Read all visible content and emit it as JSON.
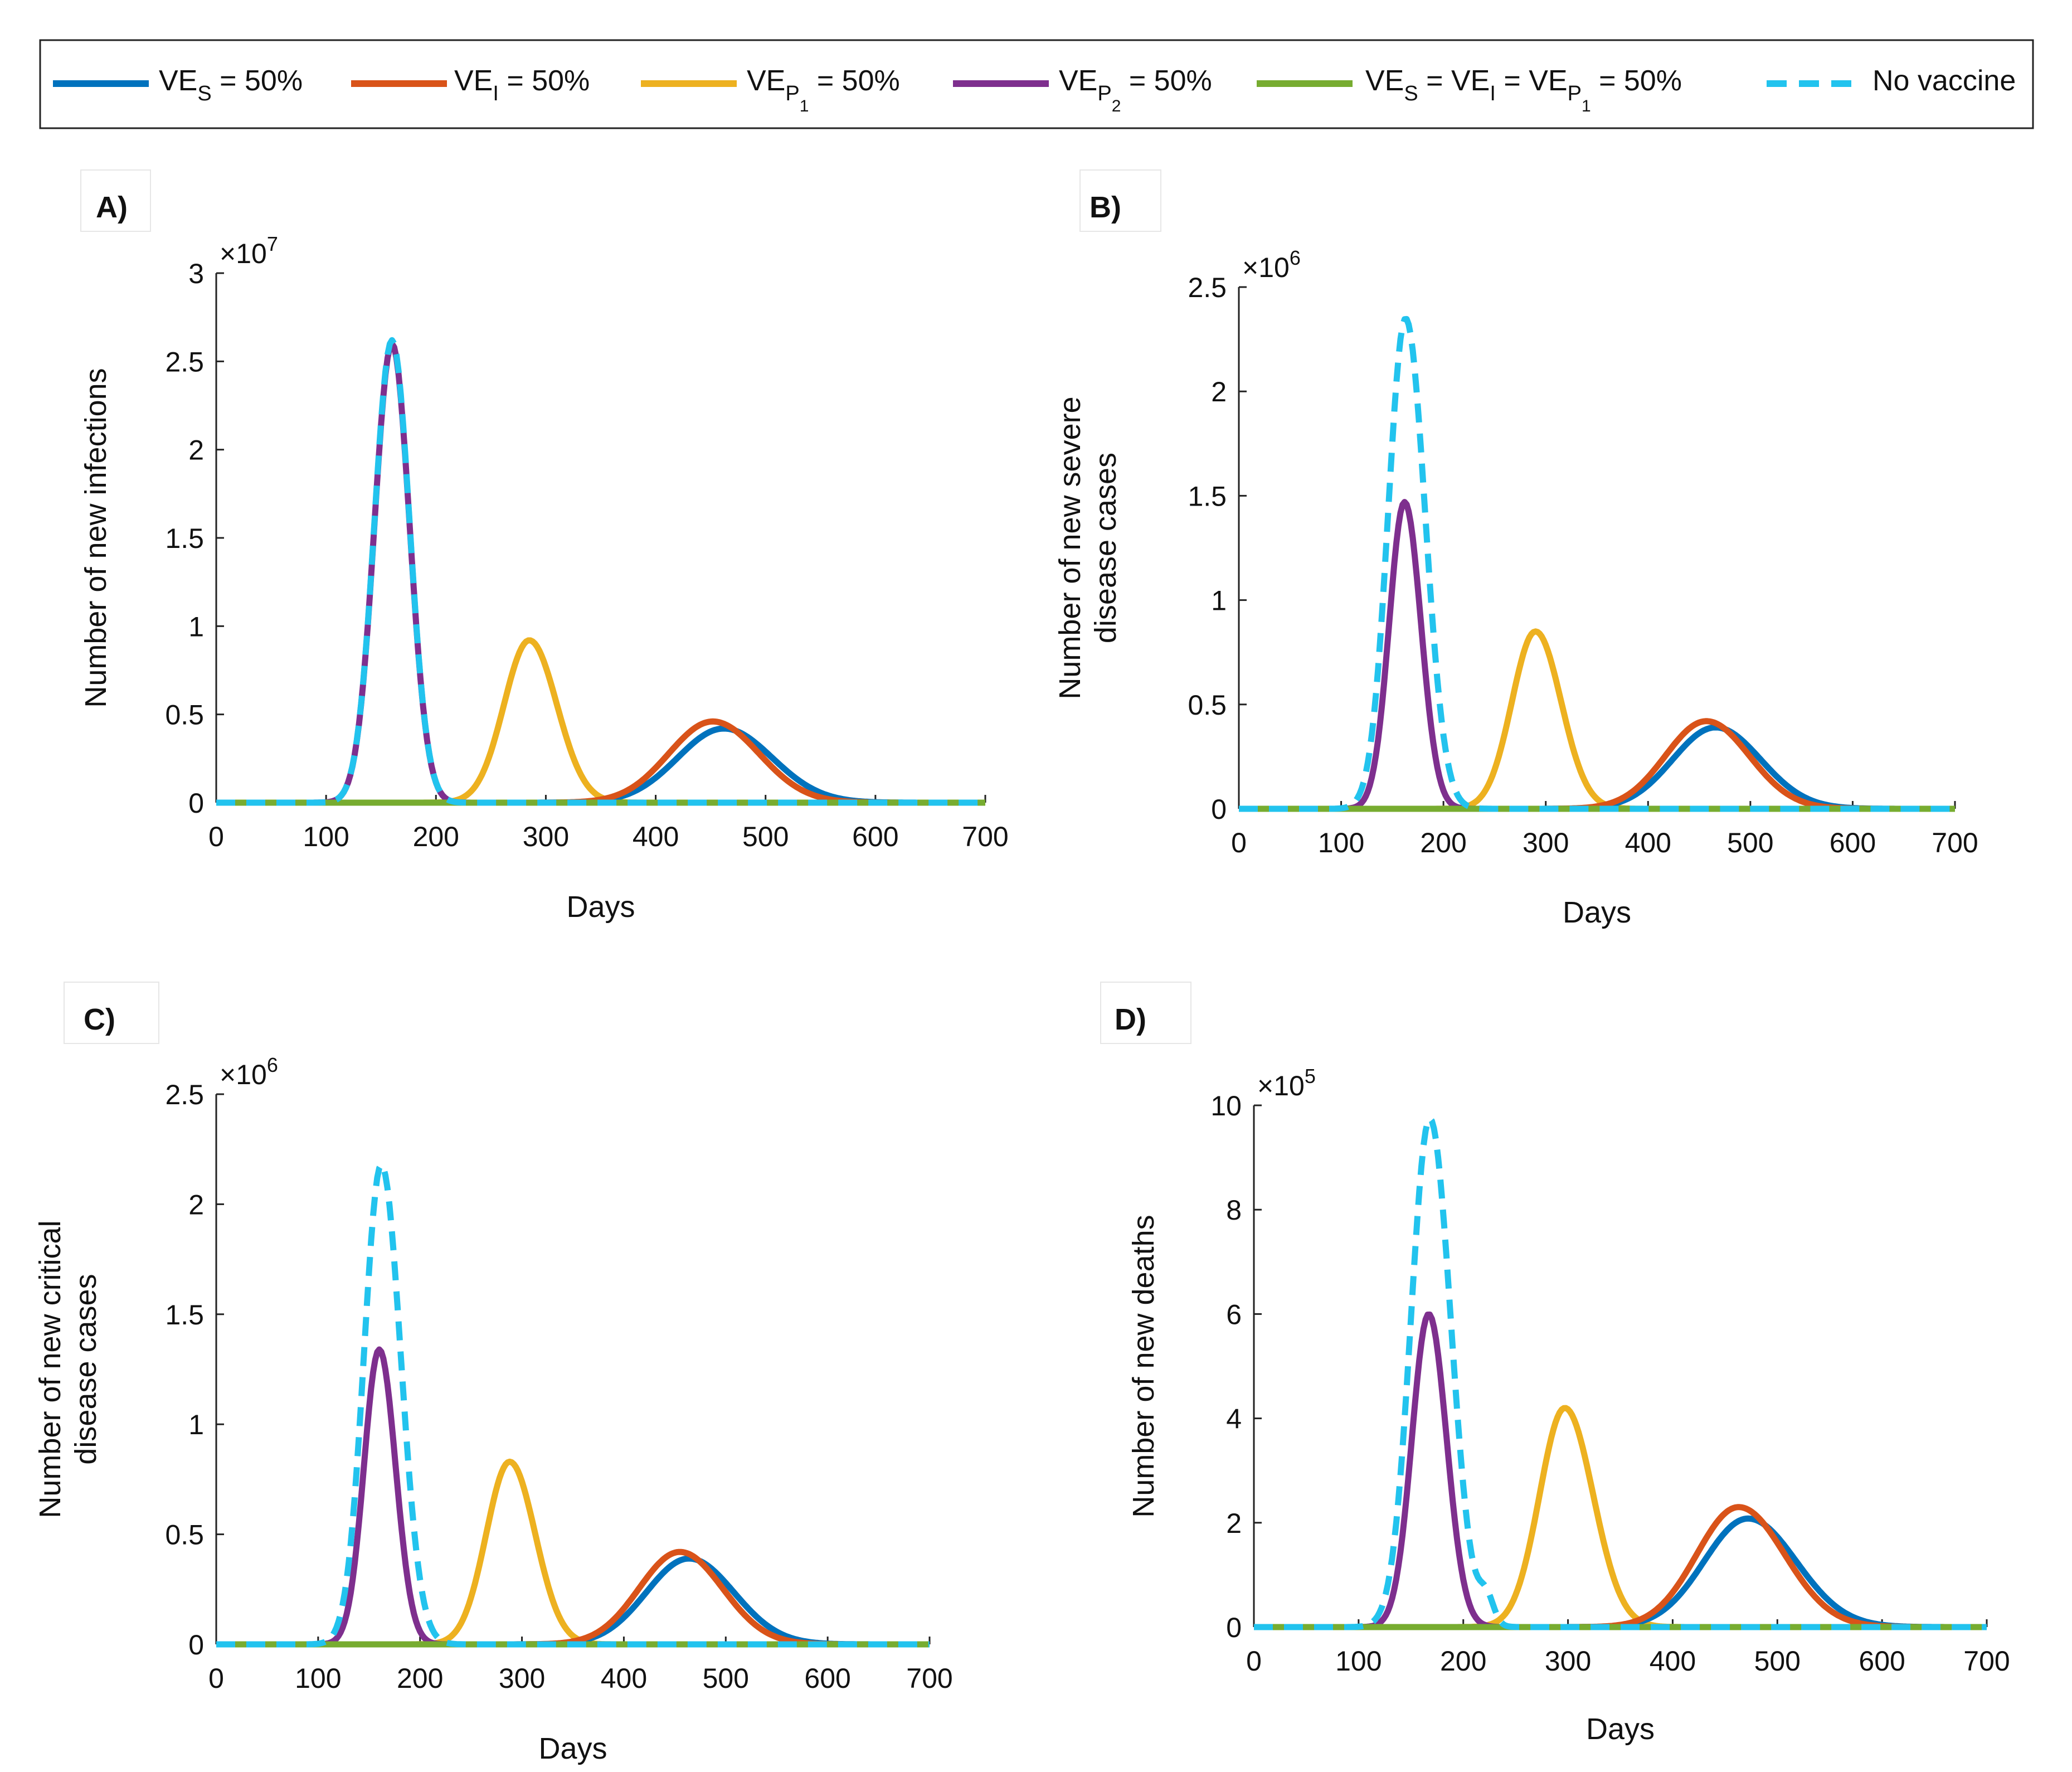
{
  "colors": {
    "ves": "#0072BD",
    "vei": "#D95319",
    "vep1": "#EDB120",
    "vep2": "#7E2F8E",
    "combined": "#77AC30",
    "novaccine": "#22C3EE"
  },
  "legend": [
    {
      "key": "ves",
      "main": "VE",
      "sub": "S",
      "rest": " = 50%",
      "dashed": false
    },
    {
      "key": "vei",
      "main": "VE",
      "sub": "I",
      "rest": " = 50%",
      "dashed": false
    },
    {
      "key": "vep1",
      "main": "VE",
      "sub": "P",
      "subsub": "1",
      "rest": " = 50%",
      "dashed": false
    },
    {
      "key": "vep2",
      "main": "VE",
      "sub": "P",
      "subsub": "2",
      "rest": " = 50%",
      "dashed": false
    },
    {
      "key": "combined",
      "text": "VE_S = VE_I = VE_P1 = 50%",
      "dashed": false
    },
    {
      "key": "novaccine",
      "text": "No vaccine",
      "dashed": true
    }
  ],
  "chart_data": [
    {
      "id": "A",
      "panel_label": "A)",
      "type": "line",
      "xlabel": "Days",
      "ylabel": [
        "Number of new infections"
      ],
      "xlim": [
        0,
        700
      ],
      "ylim": [
        0,
        3
      ],
      "xticks": [
        0,
        100,
        200,
        300,
        400,
        500,
        600,
        700
      ],
      "yticks": [
        0,
        0.5,
        1,
        1.5,
        2,
        2.5,
        3
      ],
      "ytick_labels": [
        "0",
        "0.5",
        "1",
        "1.5",
        "2",
        "2.5",
        "3"
      ],
      "multiplier": {
        "base": "×10",
        "exp": "7"
      },
      "series": [
        {
          "key": "novaccine",
          "peaks": [
            {
              "x": 160,
              "y": 2.62,
              "sl": 16,
              "sr": 16
            }
          ]
        },
        {
          "key": "vep2",
          "peaks": [
            {
              "x": 160,
              "y": 2.6,
              "sl": 16,
              "sr": 16
            }
          ]
        },
        {
          "key": "vep1",
          "peaks": [
            {
              "x": 285,
              "y": 0.92,
              "sl": 23,
              "sr": 25
            }
          ]
        },
        {
          "key": "ves",
          "peaks": [
            {
              "x": 462,
              "y": 0.42,
              "sl": 42,
              "sr": 44
            }
          ]
        },
        {
          "key": "vei",
          "peaks": [
            {
              "x": 452,
              "y": 0.46,
              "sl": 40,
              "sr": 42
            }
          ]
        },
        {
          "key": "combined",
          "peaks": []
        }
      ]
    },
    {
      "id": "B",
      "panel_label": "B)",
      "type": "line",
      "xlabel": "Days",
      "ylabel": [
        "Number of new severe",
        "disease cases"
      ],
      "xlim": [
        0,
        700
      ],
      "ylim": [
        0,
        2.5
      ],
      "xticks": [
        0,
        100,
        200,
        300,
        400,
        500,
        600,
        700
      ],
      "yticks": [
        0,
        0.5,
        1,
        1.5,
        2,
        2.5
      ],
      "ytick_labels": [
        "0",
        "0.5",
        "1",
        "1.5",
        "2",
        "2.5"
      ],
      "multiplier": {
        "base": "×10",
        "exp": "6"
      },
      "series": [
        {
          "key": "novaccine",
          "peaks": [
            {
              "x": 163,
              "y": 2.35,
              "sl": 17,
              "sr": 19
            }
          ]
        },
        {
          "key": "vep2",
          "peaks": [
            {
              "x": 162,
              "y": 1.47,
              "sl": 15,
              "sr": 16
            }
          ]
        },
        {
          "key": "vep1",
          "peaks": [
            {
              "x": 290,
              "y": 0.85,
              "sl": 23,
              "sr": 25
            }
          ]
        },
        {
          "key": "ves",
          "peaks": [
            {
              "x": 466,
              "y": 0.39,
              "sl": 42,
              "sr": 44
            }
          ]
        },
        {
          "key": "vei",
          "peaks": [
            {
              "x": 457,
              "y": 0.42,
              "sl": 40,
              "sr": 42
            }
          ]
        },
        {
          "key": "combined",
          "peaks": []
        }
      ]
    },
    {
      "id": "C",
      "panel_label": "C)",
      "type": "line",
      "xlabel": "Days",
      "ylabel": [
        "Number of new critical",
        "disease cases"
      ],
      "xlim": [
        0,
        700
      ],
      "ylim": [
        0,
        2.5
      ],
      "xticks": [
        0,
        100,
        200,
        300,
        400,
        500,
        600,
        700
      ],
      "yticks": [
        0,
        0.5,
        1,
        1.5,
        2,
        2.5
      ],
      "ytick_labels": [
        "0",
        "0.5",
        "1",
        "1.5",
        "2",
        "2.5"
      ],
      "multiplier": {
        "base": "×10",
        "exp": "6"
      },
      "series": [
        {
          "key": "novaccine",
          "peaks": [
            {
              "x": 162,
              "y": 2.18,
              "sl": 17,
              "sr": 19
            }
          ]
        },
        {
          "key": "vep2",
          "peaks": [
            {
              "x": 160,
              "y": 1.34,
              "sl": 15,
              "sr": 16
            }
          ]
        },
        {
          "key": "vep1",
          "peaks": [
            {
              "x": 288,
              "y": 0.83,
              "sl": 23,
              "sr": 25
            }
          ]
        },
        {
          "key": "ves",
          "peaks": [
            {
              "x": 464,
              "y": 0.39,
              "sl": 42,
              "sr": 44
            }
          ]
        },
        {
          "key": "vei",
          "peaks": [
            {
              "x": 455,
              "y": 0.42,
              "sl": 40,
              "sr": 42
            }
          ]
        },
        {
          "key": "combined",
          "peaks": []
        }
      ]
    },
    {
      "id": "D",
      "panel_label": "D)",
      "type": "line",
      "xlabel": "Days",
      "ylabel": [
        "Number of new deaths"
      ],
      "xlim": [
        0,
        700
      ],
      "ylim": [
        0,
        10
      ],
      "xticks": [
        0,
        100,
        200,
        300,
        400,
        500,
        600,
        700
      ],
      "yticks": [
        0,
        2,
        4,
        6,
        8,
        10
      ],
      "ytick_labels": [
        "0",
        "2",
        "4",
        "6",
        "8",
        "10"
      ],
      "multiplier": {
        "base": "×10",
        "exp": "5"
      },
      "series": [
        {
          "key": "novaccine",
          "peaks": [
            {
              "x": 168,
              "y": 9.75,
              "sl": 18,
              "sr": 20
            },
            {
              "x": 222,
              "y": 0.5,
              "sl": 7,
              "sr": 7
            }
          ]
        },
        {
          "key": "vep2",
          "peaks": [
            {
              "x": 167,
              "y": 6.0,
              "sl": 16,
              "sr": 17
            }
          ]
        },
        {
          "key": "vep1",
          "peaks": [
            {
              "x": 297,
              "y": 4.2,
              "sl": 24,
              "sr": 27
            }
          ]
        },
        {
          "key": "ves",
          "peaks": [
            {
              "x": 472,
              "y": 2.08,
              "sl": 42,
              "sr": 46
            }
          ]
        },
        {
          "key": "vei",
          "peaks": [
            {
              "x": 463,
              "y": 2.3,
              "sl": 40,
              "sr": 44
            }
          ]
        },
        {
          "key": "combined",
          "peaks": []
        }
      ]
    }
  ]
}
